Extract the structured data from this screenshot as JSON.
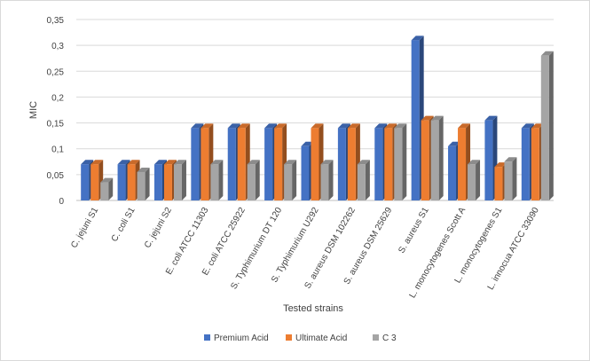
{
  "chart_data": {
    "type": "bar",
    "style": "3d-clustered-column",
    "title": "",
    "xlabel": "Tested strains",
    "ylabel": "MIC",
    "ylim": [
      0,
      0.35
    ],
    "yticks": [
      "0",
      "0,05",
      "0,1",
      "0,15",
      "0,2",
      "0,25",
      "0,3",
      "0,35"
    ],
    "grid": true,
    "legend_position": "bottom",
    "categories": [
      "C. jejuni S1",
      "C. coli S1",
      "C. jejuni S2",
      "E. coli ATCC 11303",
      "E. coli ATCC 25922",
      "S. Typhimurium DT 120",
      "S. Typhimurium U292",
      "S. aureus DSM 102262",
      "S. aureus DSM 25629",
      "S. aureus S1",
      "L. monocytogenes Scott A",
      "L. monocytogenes S1",
      "L. innocua ATCC 33090"
    ],
    "series": [
      {
        "name": "Premium Acid",
        "color": "#4472C4",
        "values": [
          0.07,
          0.07,
          0.07,
          0.14,
          0.14,
          0.14,
          0.105,
          0.14,
          0.14,
          0.31,
          0.105,
          0.155,
          0.14
        ]
      },
      {
        "name": "Ultimate Acid",
        "color": "#ED7D31",
        "values": [
          0.07,
          0.07,
          0.07,
          0.14,
          0.14,
          0.14,
          0.14,
          0.14,
          0.14,
          0.155,
          0.14,
          0.065,
          0.14
        ]
      },
      {
        "name": "C 3",
        "color": "#A5A5A5",
        "values": [
          0.035,
          0.055,
          0.07,
          0.07,
          0.07,
          0.07,
          0.07,
          0.07,
          0.14,
          0.155,
          0.07,
          0.075,
          0.28
        ]
      }
    ]
  }
}
